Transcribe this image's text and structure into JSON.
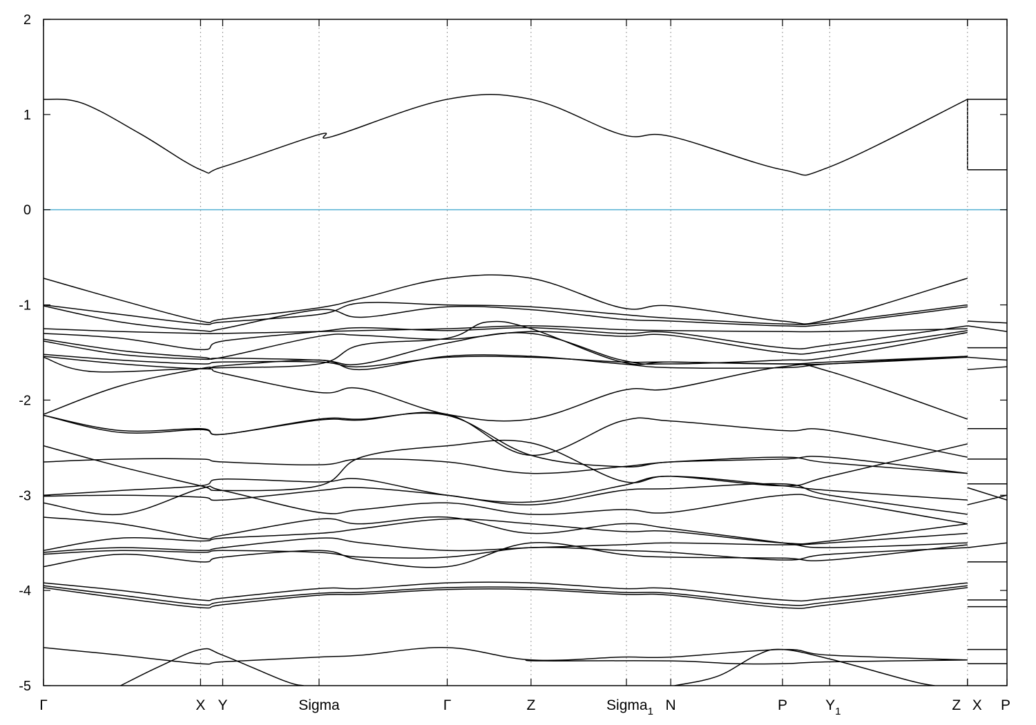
{
  "chart_data": {
    "type": "line",
    "title": "",
    "xlabel": "",
    "ylabel": "",
    "ylim": [
      -5,
      2
    ],
    "yticks": [
      2,
      1,
      0,
      -1,
      -2,
      -3,
      -4,
      -5
    ],
    "ytick_labels": [
      "2",
      "1",
      "0",
      "-1",
      "-2",
      "-3",
      "-4",
      "-5"
    ],
    "fermi_level": {
      "value": 0,
      "color": "#5cb4d4"
    },
    "kpath_points": [
      {
        "k": 0.0,
        "label": "Γ",
        "sub": ""
      },
      {
        "k": 0.163,
        "label": "X",
        "sub": ""
      },
      {
        "k": 0.186,
        "label": "Y",
        "sub": ""
      },
      {
        "k": 0.286,
        "label": "Sigma",
        "sub": ""
      },
      {
        "k": 0.419,
        "label": "Γ",
        "sub": ""
      },
      {
        "k": 0.506,
        "label": "Z",
        "sub": ""
      },
      {
        "k": 0.605,
        "label": "Sigma",
        "sub": "1"
      },
      {
        "k": 0.651,
        "label": "N",
        "sub": ""
      },
      {
        "k": 0.767,
        "label": "P",
        "sub": ""
      },
      {
        "k": 0.816,
        "label": "Y",
        "sub": "1"
      },
      {
        "k": 0.959,
        "label": "Z",
        "sub": ""
      },
      {
        "k": 0.959,
        "label": "X",
        "sub": ""
      },
      {
        "k": 1.0,
        "label": "P",
        "sub": ""
      }
    ],
    "vertical_guides": [
      0.163,
      0.186,
      0.286,
      0.419,
      0.506,
      0.605,
      0.651,
      0.767,
      0.816,
      0.959
    ],
    "segment_break": 0.959,
    "bands": [
      {
        "k": [
          0.0,
          0.04,
          0.1,
          0.163,
          0.186,
          0.286,
          0.3,
          0.419,
          0.506,
          0.6,
          0.651,
          0.767,
          0.816,
          0.959
        ],
        "e": [
          1.16,
          1.12,
          0.8,
          0.42,
          0.45,
          0.79,
          0.77,
          1.16,
          1.16,
          0.79,
          0.77,
          0.42,
          0.45,
          1.16
        ]
      },
      {
        "k": [
          0.0,
          0.08,
          0.163,
          0.186,
          0.286,
          0.33,
          0.419,
          0.506,
          0.6,
          0.651,
          0.767,
          0.816,
          0.959
        ],
        "e": [
          -0.72,
          -0.95,
          -1.17,
          -1.15,
          -1.03,
          -0.93,
          -0.72,
          -0.72,
          -1.03,
          -1.01,
          -1.17,
          -1.15,
          -0.72
        ]
      },
      {
        "k": [
          0.0,
          0.08,
          0.163,
          0.186,
          0.286,
          0.33,
          0.419,
          0.506,
          0.6,
          0.651,
          0.767,
          0.816,
          0.959
        ],
        "e": [
          -1.0,
          -1.1,
          -1.2,
          -1.18,
          -1.1,
          -0.98,
          -1.0,
          -1.02,
          -1.1,
          -1.14,
          -1.2,
          -1.18,
          -1.0
        ]
      },
      {
        "k": [
          0.0,
          0.08,
          0.163,
          0.186,
          0.286,
          0.33,
          0.419,
          0.506,
          0.6,
          0.651,
          0.767,
          0.816,
          0.959
        ],
        "e": [
          -1.01,
          -1.18,
          -1.27,
          -1.25,
          -1.05,
          -1.13,
          -1.02,
          -1.05,
          -1.15,
          -1.17,
          -1.22,
          -1.2,
          -1.02
        ]
      },
      {
        "k": [
          0.0,
          0.08,
          0.163,
          0.186,
          0.286,
          0.33,
          0.419,
          0.506,
          0.6,
          0.651,
          0.767,
          0.816,
          0.959
        ],
        "e": [
          -1.25,
          -1.28,
          -1.3,
          -1.3,
          -1.28,
          -1.27,
          -1.25,
          -1.22,
          -1.26,
          -1.27,
          -1.28,
          -1.28,
          -1.25
        ]
      },
      {
        "k": [
          0.0,
          0.08,
          0.163,
          0.186,
          0.286,
          0.33,
          0.419,
          0.506,
          0.6,
          0.651,
          0.767,
          0.816,
          0.959
        ],
        "e": [
          -1.3,
          -1.35,
          -1.47,
          -1.38,
          -1.28,
          -1.24,
          -1.27,
          -1.24,
          -1.3,
          -1.29,
          -1.45,
          -1.42,
          -1.22
        ]
      },
      {
        "k": [
          0.0,
          0.08,
          0.163,
          0.186,
          0.286,
          0.33,
          0.419,
          0.506,
          0.6,
          0.651,
          0.767,
          0.816,
          0.959
        ],
        "e": [
          -1.36,
          -1.48,
          -1.55,
          -1.55,
          -1.33,
          -1.32,
          -1.36,
          -1.28,
          -1.33,
          -1.32,
          -1.5,
          -1.48,
          -1.27
        ]
      },
      {
        "k": [
          0.0,
          0.08,
          0.163,
          0.186,
          0.286,
          0.33,
          0.419,
          0.506,
          0.6,
          0.651,
          0.767,
          0.816,
          0.959
        ],
        "e": [
          -1.38,
          -1.52,
          -1.57,
          -1.56,
          -1.58,
          -1.62,
          -1.4,
          -1.3,
          -1.58,
          -1.62,
          -1.58,
          -1.55,
          -1.29
        ]
      },
      {
        "k": [
          0.0,
          0.08,
          0.163,
          0.186,
          0.286,
          0.33,
          0.419,
          0.506,
          0.6,
          0.651,
          0.767,
          0.816,
          0.959
        ],
        "e": [
          -1.52,
          -1.58,
          -1.62,
          -1.6,
          -1.6,
          -1.65,
          -1.55,
          -1.55,
          -1.6,
          -1.6,
          -1.62,
          -1.6,
          -1.54
        ]
      },
      {
        "k": [
          0.0,
          0.08,
          0.163,
          0.186,
          0.286,
          0.33,
          0.419,
          0.506,
          0.6,
          0.651,
          0.767,
          0.816,
          0.959
        ],
        "e": [
          -1.54,
          -1.62,
          -1.67,
          -1.64,
          -1.58,
          -1.68,
          -1.54,
          -1.54,
          -1.62,
          -1.66,
          -1.66,
          -1.62,
          -1.54
        ]
      },
      {
        "k": [
          0.0,
          0.05,
          0.163,
          0.186,
          0.286,
          0.33,
          0.419,
          0.506,
          0.6,
          0.651,
          0.767,
          0.816,
          0.959
        ],
        "e": [
          -1.55,
          -1.7,
          -1.67,
          -1.72,
          -1.92,
          -1.88,
          -2.15,
          -2.2,
          -1.9,
          -1.88,
          -1.65,
          -1.7,
          -2.2
        ]
      },
      {
        "k": [
          0.0,
          0.08,
          0.163,
          0.186,
          0.286,
          0.33,
          0.419,
          0.46,
          0.506,
          0.6,
          0.651,
          0.767,
          0.816,
          0.959
        ],
        "e": [
          -2.15,
          -1.85,
          -1.67,
          -1.66,
          -1.62,
          -1.42,
          -1.35,
          -1.18,
          -1.25,
          -1.6,
          -1.6,
          -1.62,
          -1.62,
          -1.55
        ]
      },
      {
        "k": [
          0.0,
          0.08,
          0.163,
          0.186,
          0.286,
          0.33,
          0.419,
          0.506,
          0.6,
          0.651,
          0.767,
          0.816,
          0.959
        ],
        "e": [
          -2.16,
          -2.32,
          -2.3,
          -2.36,
          -2.2,
          -2.2,
          -2.16,
          -2.58,
          -2.7,
          -2.65,
          -2.62,
          -2.6,
          -2.77
        ]
      },
      {
        "k": [
          0.0,
          0.08,
          0.163,
          0.186,
          0.286,
          0.33,
          0.419,
          0.506,
          0.6,
          0.651,
          0.767,
          0.816,
          0.959
        ],
        "e": [
          -2.16,
          -2.34,
          -2.31,
          -2.36,
          -2.21,
          -2.21,
          -2.15,
          -2.58,
          -2.22,
          -2.22,
          -2.32,
          -2.32,
          -2.6
        ]
      },
      {
        "k": [
          0.0,
          0.08,
          0.163,
          0.186,
          0.286,
          0.33,
          0.419,
          0.506,
          0.6,
          0.651,
          0.767,
          0.816,
          0.959
        ],
        "e": [
          -2.48,
          -2.7,
          -2.9,
          -2.95,
          -2.9,
          -2.6,
          -2.48,
          -2.45,
          -2.85,
          -2.8,
          -2.9,
          -2.8,
          -2.46
        ]
      },
      {
        "k": [
          0.0,
          0.08,
          0.163,
          0.186,
          0.286,
          0.33,
          0.419,
          0.506,
          0.6,
          0.651,
          0.767,
          0.816,
          0.959
        ],
        "e": [
          -2.65,
          -2.62,
          -2.62,
          -2.65,
          -2.68,
          -2.62,
          -2.65,
          -2.77,
          -2.7,
          -2.65,
          -2.6,
          -2.66,
          -2.77
        ]
      },
      {
        "k": [
          0.0,
          0.08,
          0.163,
          0.186,
          0.286,
          0.33,
          0.419,
          0.506,
          0.6,
          0.651,
          0.767,
          0.816,
          0.959
        ],
        "e": [
          -3.0,
          -2.95,
          -2.9,
          -2.83,
          -2.86,
          -2.83,
          -3.0,
          -3.07,
          -2.9,
          -2.8,
          -2.9,
          -2.95,
          -3.05
        ]
      },
      {
        "k": [
          0.0,
          0.08,
          0.163,
          0.186,
          0.286,
          0.33,
          0.419,
          0.506,
          0.6,
          0.651,
          0.767,
          0.816,
          0.959
        ],
        "e": [
          -3.01,
          -3.0,
          -3.02,
          -3.05,
          -2.95,
          -2.92,
          -3.0,
          -3.1,
          -2.95,
          -2.93,
          -2.88,
          -3.0,
          -3.2
        ]
      },
      {
        "k": [
          0.0,
          0.08,
          0.163,
          0.186,
          0.286,
          0.33,
          0.419,
          0.506,
          0.6,
          0.651,
          0.767,
          0.816,
          0.959
        ],
        "e": [
          -3.08,
          -3.2,
          -2.93,
          -2.95,
          -3.18,
          -3.15,
          -3.08,
          -3.2,
          -3.15,
          -3.18,
          -3.0,
          -3.05,
          -3.3
        ]
      },
      {
        "k": [
          0.0,
          0.08,
          0.163,
          0.186,
          0.286,
          0.33,
          0.419,
          0.506,
          0.6,
          0.651,
          0.767,
          0.816,
          0.959
        ],
        "e": [
          -3.23,
          -3.3,
          -3.45,
          -3.42,
          -3.25,
          -3.3,
          -3.23,
          -3.4,
          -3.3,
          -3.35,
          -3.5,
          -3.55,
          -3.5
        ]
      },
      {
        "k": [
          0.0,
          0.08,
          0.163,
          0.186,
          0.286,
          0.33,
          0.419,
          0.506,
          0.6,
          0.651,
          0.767,
          0.816,
          0.959
        ],
        "e": [
          -3.58,
          -3.45,
          -3.48,
          -3.45,
          -3.4,
          -3.35,
          -3.25,
          -3.3,
          -3.38,
          -3.38,
          -3.5,
          -3.48,
          -3.3
        ]
      },
      {
        "k": [
          0.0,
          0.08,
          0.163,
          0.186,
          0.286,
          0.33,
          0.419,
          0.506,
          0.6,
          0.651,
          0.767,
          0.816,
          0.959
        ],
        "e": [
          -3.6,
          -3.55,
          -3.58,
          -3.55,
          -3.45,
          -3.5,
          -3.58,
          -3.55,
          -3.52,
          -3.5,
          -3.52,
          -3.5,
          -3.4
        ]
      },
      {
        "k": [
          0.0,
          0.08,
          0.163,
          0.186,
          0.286,
          0.33,
          0.419,
          0.506,
          0.6,
          0.651,
          0.767,
          0.816,
          0.959
        ],
        "e": [
          -3.62,
          -3.58,
          -3.6,
          -3.58,
          -3.6,
          -3.65,
          -3.65,
          -3.55,
          -3.58,
          -3.6,
          -3.68,
          -3.62,
          -3.55
        ]
      },
      {
        "k": [
          0.0,
          0.08,
          0.163,
          0.186,
          0.286,
          0.33,
          0.419,
          0.506,
          0.6,
          0.651,
          0.767,
          0.816,
          0.959
        ],
        "e": [
          -3.75,
          -3.62,
          -3.7,
          -3.65,
          -3.58,
          -3.68,
          -3.75,
          -3.5,
          -3.62,
          -3.65,
          -3.66,
          -3.68,
          -3.52
        ]
      },
      {
        "k": [
          0.0,
          0.08,
          0.163,
          0.186,
          0.286,
          0.33,
          0.419,
          0.506,
          0.6,
          0.651,
          0.767,
          0.816,
          0.959
        ],
        "e": [
          -3.92,
          -4.0,
          -4.1,
          -4.08,
          -3.98,
          -3.98,
          -3.92,
          -3.92,
          -3.98,
          -3.98,
          -4.1,
          -4.08,
          -3.92
        ]
      },
      {
        "k": [
          0.0,
          0.08,
          0.163,
          0.186,
          0.286,
          0.33,
          0.419,
          0.506,
          0.6,
          0.651,
          0.767,
          0.816,
          0.959
        ],
        "e": [
          -3.95,
          -4.05,
          -4.15,
          -4.12,
          -4.03,
          -4.02,
          -3.97,
          -3.97,
          -4.02,
          -4.03,
          -4.15,
          -4.12,
          -3.95
        ]
      },
      {
        "k": [
          0.0,
          0.08,
          0.163,
          0.186,
          0.286,
          0.33,
          0.419,
          0.506,
          0.6,
          0.651,
          0.767,
          0.816,
          0.959
        ],
        "e": [
          -3.97,
          -4.08,
          -4.18,
          -4.15,
          -4.05,
          -4.04,
          -3.99,
          -3.99,
          -4.04,
          -4.05,
          -4.18,
          -4.15,
          -3.97
        ]
      },
      {
        "k": [
          0.0,
          0.08,
          0.163,
          0.186,
          0.286,
          0.33,
          0.419,
          0.506,
          0.6,
          0.651,
          0.767,
          0.816,
          0.959
        ],
        "e": [
          -4.6,
          -4.68,
          -4.77,
          -4.75,
          -4.7,
          -4.68,
          -4.6,
          -4.73,
          -4.7,
          -4.7,
          -4.62,
          -4.68,
          -4.73
        ]
      },
      {
        "k": [
          0.08,
          0.12,
          0.163,
          0.186,
          0.25,
          0.27
        ],
        "e": [
          -5.0,
          -4.8,
          -4.62,
          -4.68,
          -4.95,
          -5.0
        ]
      },
      {
        "k": [
          0.5,
          0.52,
          0.65,
          0.72,
          0.767,
          0.816,
          0.959
        ],
        "e": [
          -4.73,
          -4.74,
          -4.74,
          -4.77,
          -4.77,
          -4.75,
          -4.73
        ]
      },
      {
        "k": [
          0.655,
          0.7,
          0.74,
          0.767,
          0.816,
          0.9,
          0.925
        ],
        "e": [
          -5.0,
          -4.9,
          -4.68,
          -4.62,
          -4.72,
          -4.95,
          -5.0
        ]
      },
      {
        "k": [
          0.959,
          1.0
        ],
        "e": [
          1.16,
          1.16
        ]
      },
      {
        "k": [
          0.959,
          1.0
        ],
        "e": [
          0.42,
          0.42
        ]
      },
      {
        "k": [
          0.959,
          1.0
        ],
        "e": [
          -1.17,
          -1.19
        ]
      },
      {
        "k": [
          0.959,
          1.0
        ],
        "e": [
          -1.22,
          -1.28
        ]
      },
      {
        "k": [
          0.959,
          1.0
        ],
        "e": [
          -1.45,
          -1.45
        ]
      },
      {
        "k": [
          0.959,
          1.0
        ],
        "e": [
          -1.55,
          -1.58
        ]
      },
      {
        "k": [
          0.959,
          1.0
        ],
        "e": [
          -1.68,
          -1.65
        ]
      },
      {
        "k": [
          0.959,
          1.0
        ],
        "e": [
          -2.3,
          -2.3
        ]
      },
      {
        "k": [
          0.959,
          1.0
        ],
        "e": [
          -2.62,
          -2.62
        ]
      },
      {
        "k": [
          0.959,
          1.0
        ],
        "e": [
          -2.88,
          -2.88
        ]
      },
      {
        "k": [
          0.959,
          1.0
        ],
        "e": [
          -2.92,
          -3.05
        ]
      },
      {
        "k": [
          0.959,
          1.0
        ],
        "e": [
          -3.1,
          -3.0
        ]
      },
      {
        "k": [
          0.959,
          1.0
        ],
        "e": [
          -3.55,
          -3.5
        ]
      },
      {
        "k": [
          0.959,
          1.0
        ],
        "e": [
          -3.7,
          -3.7
        ]
      },
      {
        "k": [
          0.959,
          1.0
        ],
        "e": [
          -4.1,
          -4.1
        ]
      },
      {
        "k": [
          0.959,
          1.0
        ],
        "e": [
          -4.17,
          -4.17
        ]
      },
      {
        "k": [
          0.959,
          1.0
        ],
        "e": [
          -4.62,
          -4.62
        ]
      },
      {
        "k": [
          0.959,
          1.0
        ],
        "e": [
          -4.77,
          -4.77
        ]
      }
    ]
  }
}
